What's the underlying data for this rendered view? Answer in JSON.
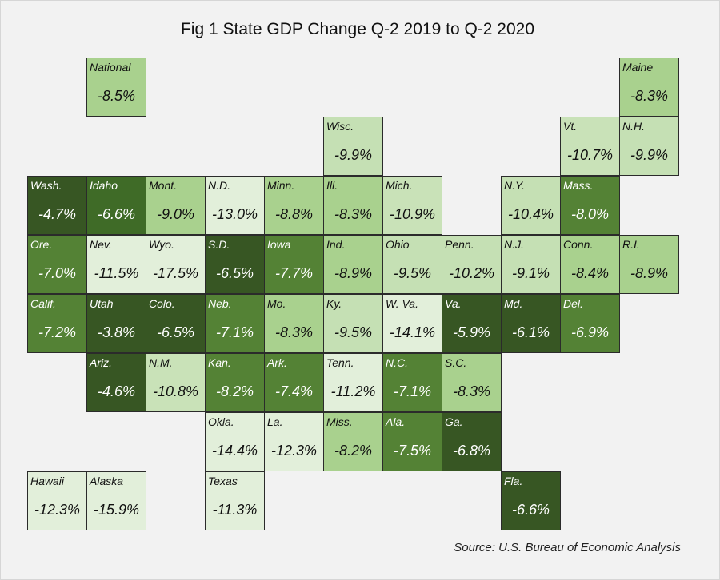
{
  "chart_data": {
    "type": "table",
    "title": "Fig 1 State GDP Change Q-2 2019 to Q-2 2020",
    "source": "Source: U.S. Bureau of Economic Analysis",
    "color_scale": {
      "low": "#eaf3e2",
      "mid": "#a8d08d",
      "high": "#375623"
    },
    "tiles": [
      {
        "label": "National",
        "value": "-8.5%",
        "num": -8.5,
        "row": 0,
        "col": 1,
        "color": "#a9d18e"
      },
      {
        "label": "Maine",
        "value": "-8.3%",
        "num": -8.3,
        "row": 0,
        "col": 10,
        "color": "#a9d18e"
      },
      {
        "label": "Wisc.",
        "value": "-9.9%",
        "num": -9.9,
        "row": 1,
        "col": 5,
        "color": "#c5e0b4"
      },
      {
        "label": "Vt.",
        "value": "-10.7%",
        "num": -10.7,
        "row": 1,
        "col": 9,
        "color": "#c9e2b8"
      },
      {
        "label": "N.H.",
        "value": "-9.9%",
        "num": -9.9,
        "row": 1,
        "col": 10,
        "color": "#c5e0b4"
      },
      {
        "label": "Wash.",
        "value": "-4.7%",
        "num": -4.7,
        "row": 2,
        "col": 0,
        "color": "#375623"
      },
      {
        "label": "Idaho",
        "value": "-6.6%",
        "num": -6.6,
        "row": 2,
        "col": 1,
        "color": "#3f6b27"
      },
      {
        "label": "Mont.",
        "value": "-9.0%",
        "num": -9.0,
        "row": 2,
        "col": 2,
        "color": "#a9d18e"
      },
      {
        "label": "N.D.",
        "value": "-13.0%",
        "num": -13.0,
        "row": 2,
        "col": 3,
        "color": "#e2efda"
      },
      {
        "label": "Minn.",
        "value": "-8.8%",
        "num": -8.8,
        "row": 2,
        "col": 4,
        "color": "#a9d18e"
      },
      {
        "label": "Ill.",
        "value": "-8.3%",
        "num": -8.3,
        "row": 2,
        "col": 5,
        "color": "#a9d18e"
      },
      {
        "label": "Mich.",
        "value": "-10.9%",
        "num": -10.9,
        "row": 2,
        "col": 6,
        "color": "#c9e2b8"
      },
      {
        "label": "N.Y.",
        "value": "-10.4%",
        "num": -10.4,
        "row": 2,
        "col": 8,
        "color": "#c5e0b4"
      },
      {
        "label": "Mass.",
        "value": "-8.0%",
        "num": -8.0,
        "row": 2,
        "col": 9,
        "color": "#548235"
      },
      {
        "label": "Ore.",
        "value": "-7.0%",
        "num": -7.0,
        "row": 3,
        "col": 0,
        "color": "#548235"
      },
      {
        "label": "Nev.",
        "value": "-11.5%",
        "num": -11.5,
        "row": 3,
        "col": 1,
        "color": "#e2efda"
      },
      {
        "label": "Wyo.",
        "value": "-17.5%",
        "num": -17.5,
        "row": 3,
        "col": 2,
        "color": "#e2efda"
      },
      {
        "label": "S.D.",
        "value": "-6.5%",
        "num": -6.5,
        "row": 3,
        "col": 3,
        "color": "#375623"
      },
      {
        "label": "Iowa",
        "value": "-7.7%",
        "num": -7.7,
        "row": 3,
        "col": 4,
        "color": "#548235"
      },
      {
        "label": "Ind.",
        "value": "-8.9%",
        "num": -8.9,
        "row": 3,
        "col": 5,
        "color": "#a9d18e"
      },
      {
        "label": "Ohio",
        "value": "-9.5%",
        "num": -9.5,
        "row": 3,
        "col": 6,
        "color": "#c5e0b4"
      },
      {
        "label": "Penn.",
        "value": "-10.2%",
        "num": -10.2,
        "row": 3,
        "col": 7,
        "color": "#c5e0b4"
      },
      {
        "label": "N.J.",
        "value": "-9.1%",
        "num": -9.1,
        "row": 3,
        "col": 8,
        "color": "#c5e0b4"
      },
      {
        "label": "Conn.",
        "value": "-8.4%",
        "num": -8.4,
        "row": 3,
        "col": 9,
        "color": "#a9d18e"
      },
      {
        "label": "R.I.",
        "value": "-8.9%",
        "num": -8.9,
        "row": 3,
        "col": 10,
        "color": "#a9d18e"
      },
      {
        "label": "Calif.",
        "value": "-7.2%",
        "num": -7.2,
        "row": 4,
        "col": 0,
        "color": "#548235"
      },
      {
        "label": "Utah",
        "value": "-3.8%",
        "num": -3.8,
        "row": 4,
        "col": 1,
        "color": "#375623"
      },
      {
        "label": "Colo.",
        "value": "-6.5%",
        "num": -6.5,
        "row": 4,
        "col": 2,
        "color": "#375623"
      },
      {
        "label": "Neb.",
        "value": "-7.1%",
        "num": -7.1,
        "row": 4,
        "col": 3,
        "color": "#548235"
      },
      {
        "label": "Mo.",
        "value": "-8.3%",
        "num": -8.3,
        "row": 4,
        "col": 4,
        "color": "#a9d18e"
      },
      {
        "label": "Ky.",
        "value": "-9.5%",
        "num": -9.5,
        "row": 4,
        "col": 5,
        "color": "#c5e0b4"
      },
      {
        "label": "W. Va.",
        "value": "-14.1%",
        "num": -14.1,
        "row": 4,
        "col": 6,
        "color": "#e2efda"
      },
      {
        "label": "Va.",
        "value": "-5.9%",
        "num": -5.9,
        "row": 4,
        "col": 7,
        "color": "#375623"
      },
      {
        "label": "Md.",
        "value": "-6.1%",
        "num": -6.1,
        "row": 4,
        "col": 8,
        "color": "#375623"
      },
      {
        "label": "Del.",
        "value": "-6.9%",
        "num": -6.9,
        "row": 4,
        "col": 9,
        "color": "#548235"
      },
      {
        "label": "Ariz.",
        "value": "-4.6%",
        "num": -4.6,
        "row": 5,
        "col": 1,
        "color": "#375623"
      },
      {
        "label": "N.M.",
        "value": "-10.8%",
        "num": -10.8,
        "row": 5,
        "col": 2,
        "color": "#c9e2b8"
      },
      {
        "label": "Kan.",
        "value": "-8.2%",
        "num": -8.2,
        "row": 5,
        "col": 3,
        "color": "#548235"
      },
      {
        "label": "Ark.",
        "value": "-7.4%",
        "num": -7.4,
        "row": 5,
        "col": 4,
        "color": "#548235"
      },
      {
        "label": "Tenn.",
        "value": "-11.2%",
        "num": -11.2,
        "row": 5,
        "col": 5,
        "color": "#e2efda"
      },
      {
        "label": "N.C.",
        "value": "-7.1%",
        "num": -7.1,
        "row": 5,
        "col": 6,
        "color": "#548235"
      },
      {
        "label": "S.C.",
        "value": "-8.3%",
        "num": -8.3,
        "row": 5,
        "col": 7,
        "color": "#a9d18e"
      },
      {
        "label": "Okla.",
        "value": "-14.4%",
        "num": -14.4,
        "row": 6,
        "col": 3,
        "color": "#e2efda"
      },
      {
        "label": "La.",
        "value": "-12.3%",
        "num": -12.3,
        "row": 6,
        "col": 4,
        "color": "#e2efda"
      },
      {
        "label": "Miss.",
        "value": "-8.2%",
        "num": -8.2,
        "row": 6,
        "col": 5,
        "color": "#a9d18e"
      },
      {
        "label": "Ala.",
        "value": "-7.5%",
        "num": -7.5,
        "row": 6,
        "col": 6,
        "color": "#548235"
      },
      {
        "label": "Ga.",
        "value": "-6.8%",
        "num": -6.8,
        "row": 6,
        "col": 7,
        "color": "#375623"
      },
      {
        "label": "Hawaii",
        "value": "-12.3%",
        "num": -12.3,
        "row": 7,
        "col": 0,
        "color": "#e2efda"
      },
      {
        "label": "Alaska",
        "value": "-15.9%",
        "num": -15.9,
        "row": 7,
        "col": 1,
        "color": "#e2efda"
      },
      {
        "label": "Texas",
        "value": "-11.3%",
        "num": -11.3,
        "row": 7,
        "col": 3,
        "color": "#e2efda"
      },
      {
        "label": "Fla.",
        "value": "-6.6%",
        "num": -6.6,
        "row": 7,
        "col": 8,
        "color": "#375623"
      }
    ]
  }
}
